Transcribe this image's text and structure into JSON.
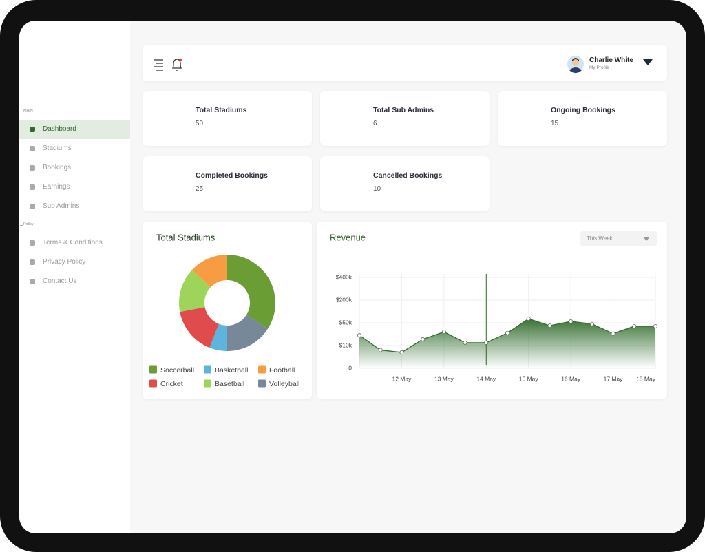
{
  "sidebar": {
    "sections": [
      {
        "label": "MAIN",
        "items": [
          "Dashboard",
          "Stadiums",
          "Bookings",
          "Earnings",
          "Sub Admins"
        ]
      },
      {
        "label": "Policy",
        "items": [
          "Terms & Conditions",
          "Privacy Policy",
          "Contact Us"
        ]
      }
    ]
  },
  "header": {
    "user_name": "Charlie White",
    "user_subtitle": "My Profile"
  },
  "stats": [
    {
      "label": "Total Stadiums",
      "value": 50
    },
    {
      "label": "Total Sub Admins",
      "value": 6
    },
    {
      "label": "Ongoing Bookings",
      "value": 15
    },
    {
      "label": "Completed Bookings",
      "value": 25
    },
    {
      "label": "Cancelled Bookings",
      "value": 10
    }
  ],
  "chart_data": [
    {
      "type": "pie",
      "title": "Total Stadiums",
      "categories": [
        "Soccerball",
        "Volleyball",
        "Basketball",
        "Cricket",
        "Basetball",
        "Football"
      ],
      "values": [
        34,
        16,
        6,
        16,
        15,
        13
      ],
      "colors": [
        "#6a9e34",
        "#778899",
        "#5db4dc",
        "#e04b4b",
        "#9ed45a",
        "#f79c42"
      ]
    },
    {
      "type": "line",
      "title": "Revenue",
      "period_selector": "This Week",
      "categories": [
        null,
        null,
        "12 May",
        null,
        "13 May",
        null,
        "14 May",
        null,
        "15 May",
        null,
        "16 May",
        null,
        "17 May",
        null,
        "18 May"
      ],
      "series": [
        {
          "name": "Revenue",
          "color": "#2f6b2a",
          "values": [
            28000,
            8000,
            7000,
            21000,
            34000,
            15000,
            15000,
            32000,
            77000,
            45000,
            59000,
            48000,
            31000,
            44000,
            44000
          ]
        }
      ],
      "ylim": [
        0,
        400000
      ],
      "yticks": [
        0,
        {
          "value": 10000,
          "label": "$10k"
        },
        {
          "value": 50000,
          "label": "$50k"
        },
        {
          "value": 200000,
          "label": "$200k"
        },
        {
          "value": 400000,
          "label": "$400k"
        }
      ],
      "grid": true
    }
  ]
}
